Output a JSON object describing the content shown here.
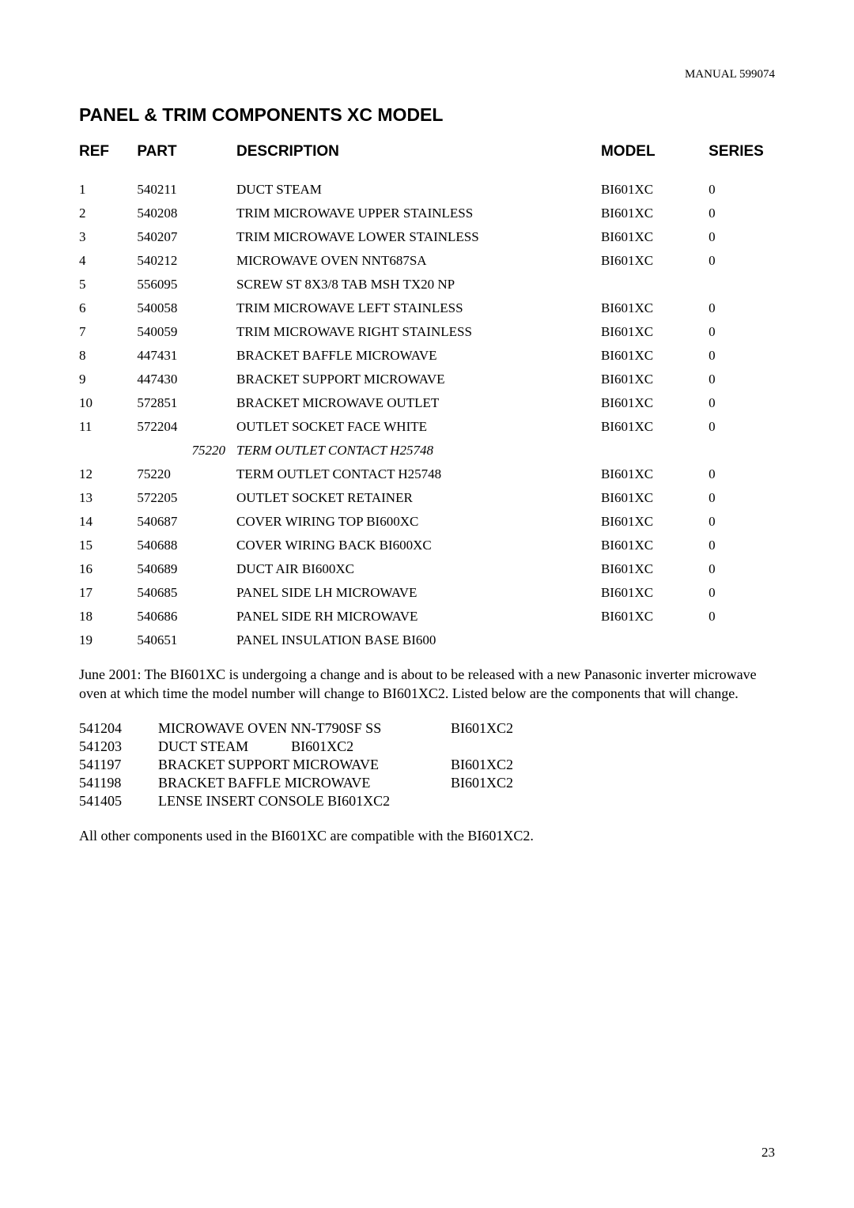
{
  "manual_label": "MANUAL 599074",
  "title": "PANEL & TRIM COMPONENTS XC MODEL",
  "headers": {
    "ref": "REF",
    "part": "PART",
    "description": "DESCRIPTION",
    "model": "MODEL",
    "series": "SERIES"
  },
  "rows": [
    {
      "ref": "1",
      "part": "540211",
      "desc": "DUCT STEAM",
      "model": "BI601XC",
      "series": "0",
      "italic": false,
      "part_right": false
    },
    {
      "ref": "2",
      "part": "540208",
      "desc": "TRIM MICROWAVE UPPER STAINLESS",
      "model": "BI601XC",
      "series": "0",
      "italic": false,
      "part_right": false
    },
    {
      "ref": "3",
      "part": "540207",
      "desc": "TRIM MICROWAVE LOWER STAINLESS",
      "model": "BI601XC",
      "series": "0",
      "italic": false,
      "part_right": false
    },
    {
      "ref": "4",
      "part": "540212",
      "desc": "MICROWAVE OVEN NNT687SA",
      "model": "BI601XC",
      "series": "0",
      "italic": false,
      "part_right": false
    },
    {
      "ref": "5",
      "part": "556095",
      "desc": "SCREW ST 8X3/8 TAB MSH TX20 NP",
      "model": "",
      "series": "",
      "italic": false,
      "part_right": false
    },
    {
      "ref": "6",
      "part": "540058",
      "desc": "TRIM MICROWAVE LEFT STAINLESS",
      "model": "BI601XC",
      "series": "0",
      "italic": false,
      "part_right": false
    },
    {
      "ref": "7",
      "part": "540059",
      "desc": "TRIM MICROWAVE RIGHT STAINLESS",
      "model": "BI601XC",
      "series": "0",
      "italic": false,
      "part_right": false
    },
    {
      "ref": "8",
      "part": "447431",
      "desc": "BRACKET BAFFLE MICROWAVE",
      "model": "BI601XC",
      "series": "0",
      "italic": false,
      "part_right": false
    },
    {
      "ref": "9",
      "part": "447430",
      "desc": "BRACKET SUPPORT MICROWAVE",
      "model": "BI601XC",
      "series": "0",
      "italic": false,
      "part_right": false
    },
    {
      "ref": "10",
      "part": "572851",
      "desc": "BRACKET MICROWAVE OUTLET",
      "model": "BI601XC",
      "series": "0",
      "italic": false,
      "part_right": false
    },
    {
      "ref": "11",
      "part": "572204",
      "desc": "OUTLET SOCKET FACE WHITE",
      "model": "BI601XC",
      "series": "0",
      "italic": false,
      "part_right": false
    },
    {
      "ref": "",
      "part": "75220",
      "desc": "TERM OUTLET CONTACT H25748",
      "model": "",
      "series": "",
      "italic": true,
      "part_right": true
    },
    {
      "ref": "12",
      "part": "75220",
      "desc": "TERM OUTLET CONTACT H25748",
      "model": "BI601XC",
      "series": "0",
      "italic": false,
      "part_right": false
    },
    {
      "ref": "13",
      "part": "572205",
      "desc": "OUTLET SOCKET RETAINER",
      "model": "BI601XC",
      "series": "0",
      "italic": false,
      "part_right": false
    },
    {
      "ref": "14",
      "part": "540687",
      "desc": "COVER WIRING TOP BI600XC",
      "model": "BI601XC",
      "series": "0",
      "italic": false,
      "part_right": false
    },
    {
      "ref": "15",
      "part": "540688",
      "desc": "COVER WIRING BACK BI600XC",
      "model": "BI601XC",
      "series": "0",
      "italic": false,
      "part_right": false
    },
    {
      "ref": "16",
      "part": "540689",
      "desc": "DUCT AIR BI600XC",
      "model": "BI601XC",
      "series": "0",
      "italic": false,
      "part_right": false
    },
    {
      "ref": "17",
      "part": "540685",
      "desc": "PANEL SIDE LH MICROWAVE",
      "model": "BI601XC",
      "series": "0",
      "italic": false,
      "part_right": false
    },
    {
      "ref": "18",
      "part": "540686",
      "desc": "PANEL SIDE RH MICROWAVE",
      "model": "BI601XC",
      "series": "0",
      "italic": false,
      "part_right": false
    },
    {
      "ref": "19",
      "part": "540651",
      "desc": "PANEL INSULATION BASE BI600",
      "model": "",
      "series": "",
      "italic": false,
      "part_right": false
    }
  ],
  "note1": "June 2001:  The BI601XC is undergoing a change and is about to be released with a new Panasonic inverter microwave oven at which time the model number will change to BI601XC2.  Listed below are the components that will change.",
  "changes": [
    {
      "part": "541204",
      "desc": "MICROWAVE OVEN NN-T790SF SS",
      "model": "BI601XC2"
    },
    {
      "part": "541203",
      "desc": "DUCT STEAM            BI601XC2",
      "model": ""
    },
    {
      "part": "541197",
      "desc": "BRACKET SUPPORT MICROWAVE",
      "model": "BI601XC2"
    },
    {
      "part": "541198",
      "desc": "BRACKET BAFFLE MICROWAVE",
      "model": "BI601XC2"
    },
    {
      "part": "541405",
      "desc": "LENSE INSERT CONSOLE BI601XC2",
      "model": ""
    }
  ],
  "note2": "All other components used in the BI601XC are compatible with the BI601XC2.",
  "page_number": "23"
}
